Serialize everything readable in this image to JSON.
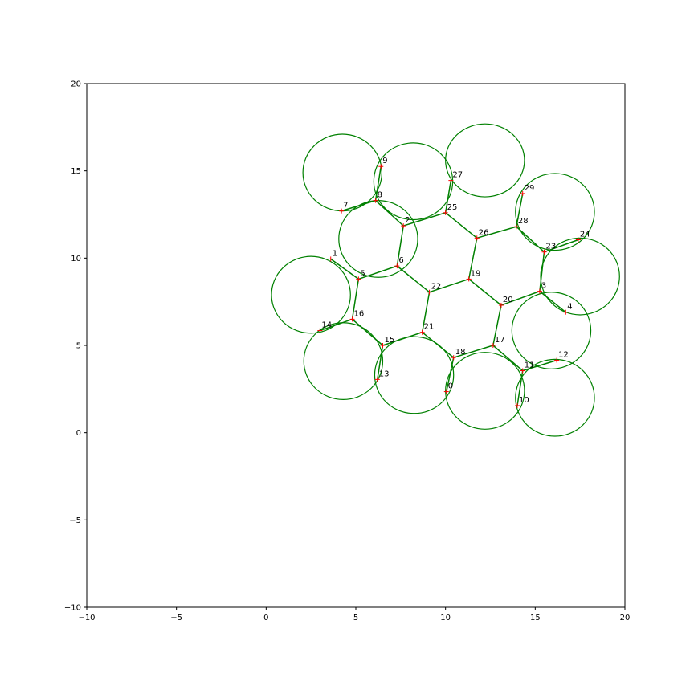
{
  "chart_data": {
    "type": "scatter",
    "title": "",
    "xlabel": "",
    "ylabel": "",
    "xlim": [
      -10,
      20
    ],
    "ylim": [
      -10,
      20
    ],
    "grid": false,
    "x_ticks": [
      -10,
      -5,
      0,
      5,
      10,
      15,
      20
    ],
    "y_ticks": [
      -10,
      -5,
      0,
      5,
      10,
      15,
      20
    ],
    "x_tick_labels": [
      "−10",
      "−5",
      "0",
      "5",
      "10",
      "15",
      "20"
    ],
    "y_tick_labels": [
      "−10",
      "−5",
      "0",
      "5",
      "10",
      "15",
      "20"
    ],
    "points": [
      {
        "label": "0",
        "x": 10.05,
        "y": 2.35
      },
      {
        "label": "1",
        "x": 3.6,
        "y": 9.95
      },
      {
        "label": "2",
        "x": 7.65,
        "y": 11.85
      },
      {
        "label": "3",
        "x": 15.25,
        "y": 8.1
      },
      {
        "label": "4",
        "x": 16.7,
        "y": 6.9
      },
      {
        "label": "5",
        "x": 5.15,
        "y": 8.8
      },
      {
        "label": "6",
        "x": 7.3,
        "y": 9.55
      },
      {
        "label": "7",
        "x": 4.2,
        "y": 12.7
      },
      {
        "label": "8",
        "x": 6.1,
        "y": 13.3
      },
      {
        "label": "9",
        "x": 6.4,
        "y": 15.25
      },
      {
        "label": "10",
        "x": 14.0,
        "y": 1.55
      },
      {
        "label": "11",
        "x": 14.3,
        "y": 3.55
      },
      {
        "label": "12",
        "x": 16.2,
        "y": 4.15
      },
      {
        "label": "13",
        "x": 6.2,
        "y": 3.05
      },
      {
        "label": "14",
        "x": 3.0,
        "y": 5.85
      },
      {
        "label": "15",
        "x": 6.5,
        "y": 5.0
      },
      {
        "label": "16",
        "x": 4.8,
        "y": 6.5
      },
      {
        "label": "17",
        "x": 12.65,
        "y": 5.0
      },
      {
        "label": "18",
        "x": 10.45,
        "y": 4.3
      },
      {
        "label": "19",
        "x": 11.3,
        "y": 8.8
      },
      {
        "label": "20",
        "x": 13.1,
        "y": 7.3
      },
      {
        "label": "21",
        "x": 8.7,
        "y": 5.75
      },
      {
        "label": "22",
        "x": 9.1,
        "y": 8.05
      },
      {
        "label": "23",
        "x": 15.5,
        "y": 10.35
      },
      {
        "label": "24",
        "x": 17.4,
        "y": 11.05
      },
      {
        "label": "25",
        "x": 10.0,
        "y": 12.6
      },
      {
        "label": "26",
        "x": 11.75,
        "y": 11.15
      },
      {
        "label": "27",
        "x": 10.3,
        "y": 14.45
      },
      {
        "label": "28",
        "x": 13.95,
        "y": 11.8
      },
      {
        "label": "29",
        "x": 14.3,
        "y": 13.7
      }
    ],
    "edges": [
      [
        0,
        18
      ],
      [
        18,
        17
      ],
      [
        18,
        21
      ],
      [
        17,
        11
      ],
      [
        11,
        10
      ],
      [
        11,
        12
      ],
      [
        17,
        20
      ],
      [
        20,
        3
      ],
      [
        20,
        19
      ],
      [
        3,
        4
      ],
      [
        3,
        23
      ],
      [
        23,
        24
      ],
      [
        23,
        28
      ],
      [
        28,
        26
      ],
      [
        28,
        29
      ],
      [
        26,
        19
      ],
      [
        26,
        25
      ],
      [
        25,
        27
      ],
      [
        25,
        2
      ],
      [
        19,
        22
      ],
      [
        22,
        21
      ],
      [
        22,
        6
      ],
      [
        21,
        15
      ],
      [
        15,
        13
      ],
      [
        15,
        16
      ],
      [
        16,
        14
      ],
      [
        16,
        5
      ],
      [
        5,
        1
      ],
      [
        5,
        6
      ],
      [
        6,
        2
      ],
      [
        2,
        8
      ],
      [
        8,
        7
      ],
      [
        8,
        9
      ]
    ],
    "arcs": [
      {
        "cx": 4.25,
        "cy": 14.9,
        "r": 2.2
      },
      {
        "cx": 8.2,
        "cy": 14.4,
        "r": 2.2
      },
      {
        "cx": 12.2,
        "cy": 15.6,
        "r": 2.2,
        "ry_scale": 0.95
      },
      {
        "cx": 16.1,
        "cy": 12.65,
        "r": 2.2
      },
      {
        "cx": 17.5,
        "cy": 8.95,
        "r": 2.2
      },
      {
        "cx": 15.9,
        "cy": 5.85,
        "r": 2.2
      },
      {
        "cx": 16.1,
        "cy": 2.0,
        "r": 2.2
      },
      {
        "cx": 12.2,
        "cy": 2.4,
        "r": 2.2
      },
      {
        "cx": 8.25,
        "cy": 3.3,
        "r": 2.2
      },
      {
        "cx": 4.3,
        "cy": 4.1,
        "r": 2.2
      },
      {
        "cx": 2.5,
        "cy": 7.9,
        "r": 2.2
      },
      {
        "cx": 6.25,
        "cy": 11.1,
        "r": 2.2
      }
    ],
    "colors": {
      "edge": "#008000",
      "marker": "#ff0000",
      "axis": "#000000"
    }
  }
}
